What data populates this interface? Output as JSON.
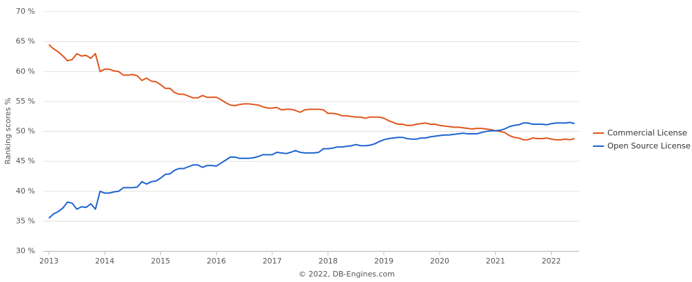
{
  "chart_data": {
    "type": "line",
    "y_label": "Ranking scores %",
    "credit": "© 2022, DB-Engines.com",
    "legend": "right",
    "grid": true,
    "xlim": [
      2012.9,
      2022.5
    ],
    "xticks": [
      2013,
      2014,
      2015,
      2016,
      2017,
      2018,
      2019,
      2020,
      2021,
      2022
    ],
    "ylim": [
      30,
      70
    ],
    "yticks": [
      {
        "value": 30,
        "label": "30 %"
      },
      {
        "value": 35,
        "label": "35 %"
      },
      {
        "value": 40,
        "label": "40 %"
      },
      {
        "value": 45,
        "label": "45 %"
      },
      {
        "value": 50,
        "label": "50 %"
      },
      {
        "value": 55,
        "label": "55 %"
      },
      {
        "value": 60,
        "label": "60 %"
      },
      {
        "value": 65,
        "label": "65 %"
      },
      {
        "value": 70,
        "label": "70 %"
      }
    ],
    "x": [
      2013,
      2013.083,
      2013.167,
      2013.25,
      2013.333,
      2013.417,
      2013.5,
      2013.583,
      2013.667,
      2013.75,
      2013.833,
      2013.917,
      2014,
      2014.083,
      2014.167,
      2014.25,
      2014.333,
      2014.417,
      2014.5,
      2014.583,
      2014.667,
      2014.75,
      2014.833,
      2014.917,
      2015,
      2015.083,
      2015.167,
      2015.25,
      2015.333,
      2015.417,
      2015.5,
      2015.583,
      2015.667,
      2015.75,
      2015.833,
      2015.917,
      2016,
      2016.083,
      2016.167,
      2016.25,
      2016.333,
      2016.417,
      2016.5,
      2016.583,
      2016.667,
      2016.75,
      2016.833,
      2016.917,
      2017,
      2017.083,
      2017.167,
      2017.25,
      2017.333,
      2017.417,
      2017.5,
      2017.583,
      2017.667,
      2017.75,
      2017.833,
      2017.917,
      2018,
      2018.083,
      2018.167,
      2018.25,
      2018.333,
      2018.417,
      2018.5,
      2018.583,
      2018.667,
      2018.75,
      2018.833,
      2018.917,
      2019,
      2019.083,
      2019.167,
      2019.25,
      2019.333,
      2019.417,
      2019.5,
      2019.583,
      2019.667,
      2019.75,
      2019.833,
      2019.917,
      2020,
      2020.083,
      2020.167,
      2020.25,
      2020.333,
      2020.417,
      2020.5,
      2020.583,
      2020.667,
      2020.75,
      2020.833,
      2020.917,
      2021,
      2021.083,
      2021.167,
      2021.25,
      2021.333,
      2021.417,
      2021.5,
      2021.583,
      2021.667,
      2021.75,
      2021.833,
      2021.917,
      2022,
      2022.083,
      2022.167,
      2022.25,
      2022.333,
      2022.417
    ],
    "series": [
      {
        "name": "Commercial License",
        "color": "#e2541b",
        "values": [
          64.5,
          63.8,
          63.3,
          62.6,
          61.8,
          62.0,
          63.0,
          62.6,
          62.7,
          62.2,
          63.0,
          60.0,
          60.4,
          60.4,
          60.1,
          60.0,
          59.4,
          59.4,
          59.5,
          59.3,
          58.5,
          58.9,
          58.4,
          58.3,
          57.8,
          57.2,
          57.2,
          56.5,
          56.2,
          56.2,
          55.9,
          55.6,
          55.6,
          56.0,
          55.7,
          55.7,
          55.7,
          55.3,
          54.8,
          54.4,
          54.3,
          54.5,
          54.6,
          54.6,
          54.5,
          54.4,
          54.1,
          53.9,
          53.9,
          54.0,
          53.6,
          53.7,
          53.7,
          53.5,
          53.2,
          53.6,
          53.7,
          53.7,
          53.7,
          53.6,
          53.0,
          53.0,
          52.9,
          52.6,
          52.6,
          52.5,
          52.4,
          52.4,
          52.2,
          52.4,
          52.4,
          52.4,
          52.2,
          51.8,
          51.5,
          51.2,
          51.2,
          51.0,
          51.0,
          51.2,
          51.3,
          51.4,
          51.2,
          51.2,
          51.0,
          50.9,
          50.8,
          50.7,
          50.7,
          50.6,
          50.5,
          50.4,
          50.5,
          50.5,
          50.4,
          50.3,
          50.1,
          50.0,
          49.8,
          49.3,
          49.0,
          48.9,
          48.6,
          48.6,
          48.9,
          48.8,
          48.8,
          48.9,
          48.7,
          48.6,
          48.6,
          48.7,
          48.6,
          48.8
        ]
      },
      {
        "name": "Open Source License",
        "color": "#1b63cf",
        "values": [
          35.5,
          36.2,
          36.6,
          37.2,
          38.2,
          38.0,
          37.0,
          37.4,
          37.3,
          37.9,
          37.0,
          40.0,
          39.7,
          39.7,
          39.9,
          40.0,
          40.6,
          40.6,
          40.6,
          40.7,
          41.6,
          41.2,
          41.6,
          41.7,
          42.2,
          42.8,
          42.9,
          43.5,
          43.8,
          43.8,
          44.1,
          44.4,
          44.4,
          44.0,
          44.3,
          44.3,
          44.2,
          44.7,
          45.2,
          45.7,
          45.7,
          45.5,
          45.5,
          45.5,
          45.6,
          45.8,
          46.1,
          46.1,
          46.1,
          46.5,
          46.4,
          46.3,
          46.5,
          46.8,
          46.5,
          46.4,
          46.4,
          46.4,
          46.5,
          47.1,
          47.1,
          47.2,
          47.4,
          47.4,
          47.5,
          47.6,
          47.8,
          47.6,
          47.6,
          47.7,
          47.9,
          48.3,
          48.6,
          48.8,
          48.9,
          49.0,
          49.0,
          48.8,
          48.7,
          48.7,
          48.9,
          48.9,
          49.1,
          49.2,
          49.3,
          49.4,
          49.4,
          49.5,
          49.6,
          49.7,
          49.6,
          49.6,
          49.6,
          49.8,
          50.0,
          50.1,
          50.1,
          50.2,
          50.4,
          50.8,
          51.0,
          51.1,
          51.4,
          51.4,
          51.2,
          51.2,
          51.2,
          51.1,
          51.3,
          51.4,
          51.4,
          51.4,
          51.5,
          51.3
        ]
      }
    ]
  }
}
